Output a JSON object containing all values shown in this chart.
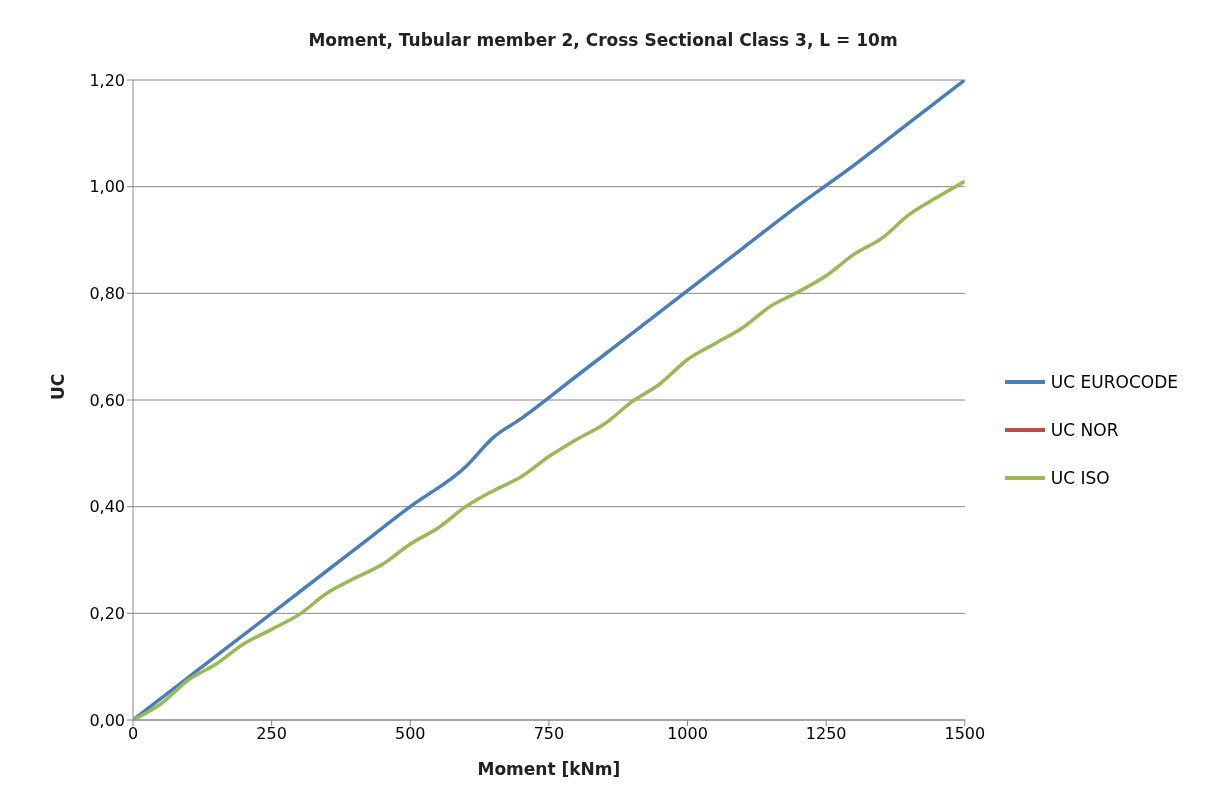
{
  "chart_data": {
    "type": "line",
    "title": "Moment, Tubular member 2, Cross Sectional Class 3, L = 10m",
    "xlabel": "Moment [kNm]",
    "ylabel": "UC",
    "xlim": [
      0,
      1500
    ],
    "xticks": [
      0,
      250,
      500,
      750,
      1000,
      1250,
      1500
    ],
    "ylim": [
      0,
      1.2
    ],
    "yticks": [
      {
        "value": 0,
        "label": "0,00"
      },
      {
        "value": 0.2,
        "label": "0,20"
      },
      {
        "value": 0.4,
        "label": "0,40"
      },
      {
        "value": 0.6,
        "label": "0,60"
      },
      {
        "value": 0.8,
        "label": "0,80"
      },
      {
        "value": 1.0,
        "label": "1,00"
      },
      {
        "value": 1.2,
        "label": "1,20"
      }
    ],
    "grid": "y",
    "legend": "right",
    "marker": "none",
    "line_style": "solid",
    "series": [
      {
        "name": "UC EUROCODE",
        "color": "#4a7ebb",
        "x": [
          0,
          100,
          200,
          300,
          400,
          500,
          600,
          650,
          700,
          800,
          900,
          1000,
          1100,
          1200,
          1300,
          1400,
          1500
        ],
        "values": [
          0,
          0.08,
          0.16,
          0.24,
          0.32,
          0.4,
          0.475,
          0.53,
          0.565,
          0.645,
          0.725,
          0.805,
          0.885,
          0.965,
          1.04,
          1.12,
          1.2
        ]
      },
      {
        "name": "UC NOR",
        "color": "#be4b48"
      },
      {
        "name": "UC ISO",
        "color": "#98b954",
        "x": [
          0,
          50,
          100,
          150,
          200,
          250,
          300,
          350,
          400,
          450,
          500,
          550,
          600,
          650,
          700,
          750,
          800,
          850,
          900,
          950,
          1000,
          1050,
          1100,
          1150,
          1200,
          1250,
          1300,
          1350,
          1400,
          1450,
          1500
        ],
        "values": [
          0,
          0.03,
          0.075,
          0.105,
          0.143,
          0.17,
          0.198,
          0.238,
          0.266,
          0.292,
          0.33,
          0.36,
          0.4,
          0.43,
          0.456,
          0.494,
          0.526,
          0.555,
          0.597,
          0.63,
          0.676,
          0.706,
          0.736,
          0.776,
          0.803,
          0.833,
          0.873,
          0.903,
          0.948,
          0.98,
          1.01
        ]
      }
    ]
  }
}
